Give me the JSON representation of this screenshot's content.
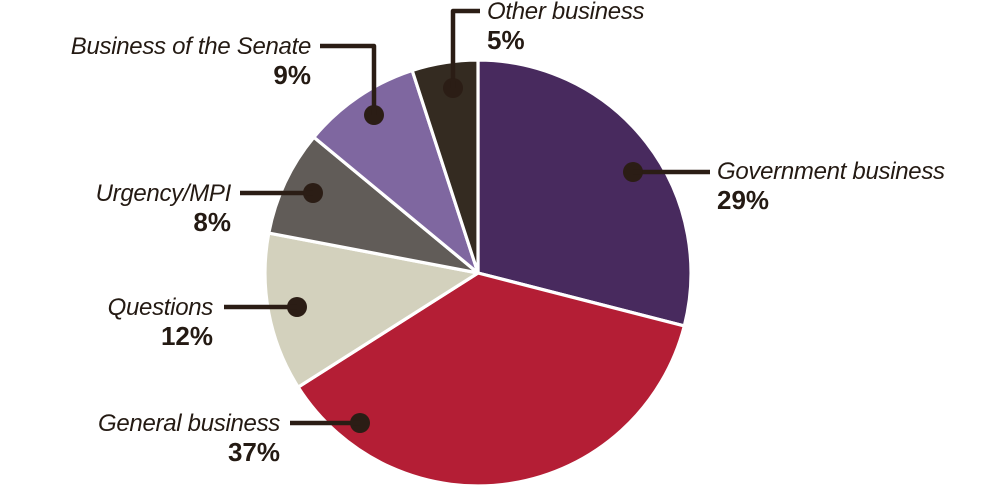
{
  "chart_data": {
    "type": "pie",
    "description": "Pie chart of categories of Senate business with percentage shares",
    "start_angle_deg": 0,
    "direction": "clockwise",
    "slices": [
      {
        "label": "Government business",
        "value": 29,
        "pct_label": "29%",
        "color": "#482a5e"
      },
      {
        "label": "General business",
        "value": 37,
        "pct_label": "37%",
        "color": "#b41e35"
      },
      {
        "label": "Questions",
        "value": 12,
        "pct_label": "12%",
        "color": "#d3d1bd"
      },
      {
        "label": "Urgency/MPI",
        "value": 8,
        "pct_label": "8%",
        "color": "#615c58"
      },
      {
        "label": "Business of the Senate",
        "value": 9,
        "pct_label": "9%",
        "color": "#7f67a0"
      },
      {
        "label": "Other business",
        "value": 5,
        "pct_label": "5%",
        "color": "#342b21"
      }
    ],
    "separator_color": "#ffffff",
    "leader_line_color": "#2b1d15",
    "text_color": "#241a13",
    "background": "#ffffff",
    "legend_position": "callout-labels",
    "grid": false
  }
}
